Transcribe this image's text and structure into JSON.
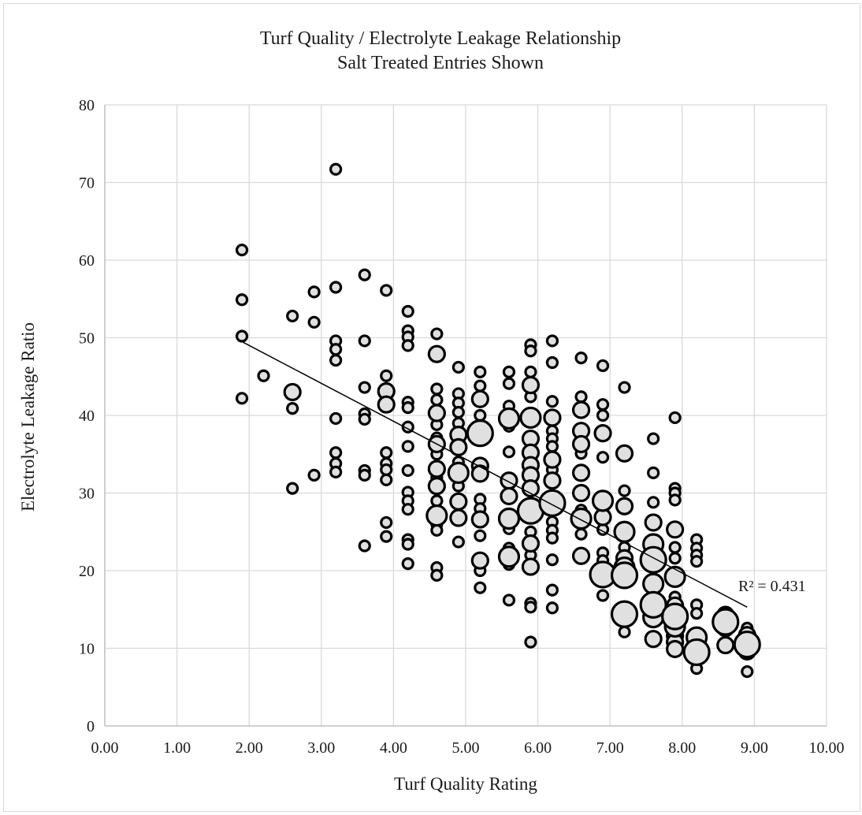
{
  "chart_data": {
    "type": "scatter",
    "title": "Turf Quality / Electrolyte Leakage Relationship",
    "subtitle": "Salt Treated Entries Shown",
    "xlabel": "Turf Quality Rating",
    "ylabel": "Electrolyte Leakage Ratio",
    "xlim": [
      0,
      10
    ],
    "ylim": [
      0,
      80
    ],
    "x_ticks": [
      "0.00",
      "1.00",
      "2.00",
      "3.00",
      "4.00",
      "5.00",
      "6.00",
      "7.00",
      "8.00",
      "9.00",
      "10.00"
    ],
    "y_ticks": [
      "0",
      "10",
      "20",
      "30",
      "40",
      "50",
      "60",
      "70",
      "80"
    ],
    "grid": true,
    "marker_fill": "#e0e0e0",
    "marker_edge": "#000000",
    "trendline": {
      "type": "linear",
      "x": [
        1.9,
        8.9
      ],
      "y": [
        49.5,
        15.3
      ],
      "label": "R² = 0.431"
    },
    "points": [
      {
        "x": 1.9,
        "y": 61.3,
        "s": 1
      },
      {
        "x": 1.9,
        "y": 54.9,
        "s": 1
      },
      {
        "x": 1.9,
        "y": 50.2,
        "s": 1
      },
      {
        "x": 1.9,
        "y": 42.2,
        "s": 1
      },
      {
        "x": 2.2,
        "y": 45.1,
        "s": 1
      },
      {
        "x": 2.6,
        "y": 52.8,
        "s": 1
      },
      {
        "x": 2.6,
        "y": 43.0,
        "s": 2
      },
      {
        "x": 2.6,
        "y": 40.9,
        "s": 1
      },
      {
        "x": 2.6,
        "y": 30.6,
        "s": 1
      },
      {
        "x": 2.9,
        "y": 55.9,
        "s": 1
      },
      {
        "x": 2.9,
        "y": 52.0,
        "s": 1
      },
      {
        "x": 2.9,
        "y": 32.3,
        "s": 1
      },
      {
        "x": 3.2,
        "y": 71.7,
        "s": 1
      },
      {
        "x": 3.2,
        "y": 56.5,
        "s": 1
      },
      {
        "x": 3.2,
        "y": 49.6,
        "s": 1
      },
      {
        "x": 3.2,
        "y": 48.5,
        "s": 1
      },
      {
        "x": 3.2,
        "y": 47.1,
        "s": 1
      },
      {
        "x": 3.2,
        "y": 39.6,
        "s": 1
      },
      {
        "x": 3.2,
        "y": 35.2,
        "s": 1
      },
      {
        "x": 3.2,
        "y": 33.8,
        "s": 1
      },
      {
        "x": 3.2,
        "y": 32.7,
        "s": 1
      },
      {
        "x": 3.6,
        "y": 58.1,
        "s": 1
      },
      {
        "x": 3.6,
        "y": 49.6,
        "s": 1
      },
      {
        "x": 3.6,
        "y": 43.6,
        "s": 1
      },
      {
        "x": 3.6,
        "y": 40.2,
        "s": 1
      },
      {
        "x": 3.6,
        "y": 39.5,
        "s": 1
      },
      {
        "x": 3.6,
        "y": 32.9,
        "s": 1
      },
      {
        "x": 3.6,
        "y": 32.3,
        "s": 1
      },
      {
        "x": 3.6,
        "y": 23.2,
        "s": 1
      },
      {
        "x": 3.9,
        "y": 56.1,
        "s": 1
      },
      {
        "x": 3.9,
        "y": 45.1,
        "s": 1
      },
      {
        "x": 3.9,
        "y": 43.1,
        "s": 2
      },
      {
        "x": 3.9,
        "y": 41.4,
        "s": 2
      },
      {
        "x": 3.9,
        "y": 35.2,
        "s": 1
      },
      {
        "x": 3.9,
        "y": 33.8,
        "s": 1
      },
      {
        "x": 3.9,
        "y": 33.0,
        "s": 1
      },
      {
        "x": 3.9,
        "y": 31.7,
        "s": 1
      },
      {
        "x": 3.9,
        "y": 26.2,
        "s": 1
      },
      {
        "x": 3.9,
        "y": 24.4,
        "s": 1
      },
      {
        "x": 4.2,
        "y": 53.4,
        "s": 1
      },
      {
        "x": 4.2,
        "y": 50.9,
        "s": 1
      },
      {
        "x": 4.2,
        "y": 50.1,
        "s": 1
      },
      {
        "x": 4.2,
        "y": 49.0,
        "s": 1
      },
      {
        "x": 4.2,
        "y": 41.7,
        "s": 1
      },
      {
        "x": 4.2,
        "y": 41.0,
        "s": 1
      },
      {
        "x": 4.2,
        "y": 38.5,
        "s": 1
      },
      {
        "x": 4.2,
        "y": 36.0,
        "s": 1
      },
      {
        "x": 4.2,
        "y": 32.9,
        "s": 1
      },
      {
        "x": 4.2,
        "y": 30.1,
        "s": 1
      },
      {
        "x": 4.2,
        "y": 29.0,
        "s": 1
      },
      {
        "x": 4.2,
        "y": 27.9,
        "s": 1
      },
      {
        "x": 4.2,
        "y": 24.0,
        "s": 1
      },
      {
        "x": 4.2,
        "y": 23.4,
        "s": 1
      },
      {
        "x": 4.2,
        "y": 20.9,
        "s": 1
      },
      {
        "x": 4.6,
        "y": 50.5,
        "s": 1
      },
      {
        "x": 4.6,
        "y": 47.9,
        "s": 2
      },
      {
        "x": 4.6,
        "y": 43.4,
        "s": 1
      },
      {
        "x": 4.6,
        "y": 42.0,
        "s": 1
      },
      {
        "x": 4.6,
        "y": 40.3,
        "s": 2
      },
      {
        "x": 4.6,
        "y": 38.8,
        "s": 1
      },
      {
        "x": 4.6,
        "y": 37.1,
        "s": 1
      },
      {
        "x": 4.6,
        "y": 36.3,
        "s": 2
      },
      {
        "x": 4.6,
        "y": 35.0,
        "s": 1
      },
      {
        "x": 4.6,
        "y": 33.1,
        "s": 2
      },
      {
        "x": 4.6,
        "y": 32.0,
        "s": 1
      },
      {
        "x": 4.6,
        "y": 30.9,
        "s": 2
      },
      {
        "x": 4.6,
        "y": 29.0,
        "s": 1
      },
      {
        "x": 4.6,
        "y": 27.1,
        "s": 3
      },
      {
        "x": 4.6,
        "y": 26.0,
        "s": 1
      },
      {
        "x": 4.6,
        "y": 25.2,
        "s": 1
      },
      {
        "x": 4.6,
        "y": 20.4,
        "s": 1
      },
      {
        "x": 4.6,
        "y": 19.4,
        "s": 1
      },
      {
        "x": 4.9,
        "y": 46.2,
        "s": 1
      },
      {
        "x": 4.9,
        "y": 42.8,
        "s": 1
      },
      {
        "x": 4.9,
        "y": 41.6,
        "s": 1
      },
      {
        "x": 4.9,
        "y": 40.4,
        "s": 1
      },
      {
        "x": 4.9,
        "y": 39.0,
        "s": 1
      },
      {
        "x": 4.9,
        "y": 37.5,
        "s": 2
      },
      {
        "x": 4.9,
        "y": 35.9,
        "s": 2
      },
      {
        "x": 4.9,
        "y": 34.0,
        "s": 1
      },
      {
        "x": 4.9,
        "y": 32.6,
        "s": 3
      },
      {
        "x": 4.9,
        "y": 30.9,
        "s": 1
      },
      {
        "x": 4.9,
        "y": 28.9,
        "s": 2
      },
      {
        "x": 4.9,
        "y": 26.8,
        "s": 2
      },
      {
        "x": 4.9,
        "y": 23.7,
        "s": 1
      },
      {
        "x": 5.2,
        "y": 45.6,
        "s": 1
      },
      {
        "x": 5.2,
        "y": 43.8,
        "s": 1
      },
      {
        "x": 5.2,
        "y": 42.1,
        "s": 2
      },
      {
        "x": 5.2,
        "y": 40.0,
        "s": 1
      },
      {
        "x": 5.2,
        "y": 37.7,
        "s": 4
      },
      {
        "x": 5.2,
        "y": 33.5,
        "s": 2
      },
      {
        "x": 5.2,
        "y": 32.5,
        "s": 2
      },
      {
        "x": 5.2,
        "y": 29.2,
        "s": 1
      },
      {
        "x": 5.2,
        "y": 28.0,
        "s": 1
      },
      {
        "x": 5.2,
        "y": 26.6,
        "s": 2
      },
      {
        "x": 5.2,
        "y": 24.5,
        "s": 1
      },
      {
        "x": 5.2,
        "y": 21.3,
        "s": 2
      },
      {
        "x": 5.2,
        "y": 20.0,
        "s": 1
      },
      {
        "x": 5.2,
        "y": 17.8,
        "s": 1
      },
      {
        "x": 5.6,
        "y": 45.6,
        "s": 1
      },
      {
        "x": 5.6,
        "y": 44.1,
        "s": 1
      },
      {
        "x": 5.6,
        "y": 41.2,
        "s": 1
      },
      {
        "x": 5.6,
        "y": 39.6,
        "s": 3
      },
      {
        "x": 5.6,
        "y": 38.6,
        "s": 1
      },
      {
        "x": 5.6,
        "y": 35.3,
        "s": 1
      },
      {
        "x": 5.6,
        "y": 31.6,
        "s": 2
      },
      {
        "x": 5.6,
        "y": 29.6,
        "s": 2
      },
      {
        "x": 5.6,
        "y": 26.7,
        "s": 3
      },
      {
        "x": 5.6,
        "y": 25.4,
        "s": 1
      },
      {
        "x": 5.6,
        "y": 22.9,
        "s": 1
      },
      {
        "x": 5.6,
        "y": 21.8,
        "s": 3
      },
      {
        "x": 5.6,
        "y": 20.8,
        "s": 1
      },
      {
        "x": 5.6,
        "y": 16.2,
        "s": 1
      },
      {
        "x": 5.9,
        "y": 49.1,
        "s": 1
      },
      {
        "x": 5.9,
        "y": 48.3,
        "s": 1
      },
      {
        "x": 5.9,
        "y": 45.6,
        "s": 1
      },
      {
        "x": 5.9,
        "y": 43.9,
        "s": 2
      },
      {
        "x": 5.9,
        "y": 42.4,
        "s": 1
      },
      {
        "x": 5.9,
        "y": 39.7,
        "s": 3
      },
      {
        "x": 5.9,
        "y": 37.0,
        "s": 2
      },
      {
        "x": 5.9,
        "y": 35.2,
        "s": 2
      },
      {
        "x": 5.9,
        "y": 33.6,
        "s": 2
      },
      {
        "x": 5.9,
        "y": 32.3,
        "s": 2
      },
      {
        "x": 5.9,
        "y": 30.6,
        "s": 2
      },
      {
        "x": 5.9,
        "y": 27.7,
        "s": 4
      },
      {
        "x": 5.9,
        "y": 25.0,
        "s": 1
      },
      {
        "x": 5.9,
        "y": 23.5,
        "s": 2
      },
      {
        "x": 5.9,
        "y": 22.0,
        "s": 1
      },
      {
        "x": 5.9,
        "y": 20.5,
        "s": 2
      },
      {
        "x": 5.9,
        "y": 15.8,
        "s": 1
      },
      {
        "x": 5.9,
        "y": 15.3,
        "s": 1
      },
      {
        "x": 5.9,
        "y": 10.8,
        "s": 1
      },
      {
        "x": 6.2,
        "y": 49.6,
        "s": 1
      },
      {
        "x": 6.2,
        "y": 46.8,
        "s": 1
      },
      {
        "x": 6.2,
        "y": 41.8,
        "s": 1
      },
      {
        "x": 6.2,
        "y": 39.7,
        "s": 2
      },
      {
        "x": 6.2,
        "y": 38.0,
        "s": 1
      },
      {
        "x": 6.2,
        "y": 37.0,
        "s": 1
      },
      {
        "x": 6.2,
        "y": 36.0,
        "s": 1
      },
      {
        "x": 6.2,
        "y": 34.3,
        "s": 2
      },
      {
        "x": 6.2,
        "y": 33.0,
        "s": 1
      },
      {
        "x": 6.2,
        "y": 31.6,
        "s": 2
      },
      {
        "x": 6.2,
        "y": 28.7,
        "s": 4
      },
      {
        "x": 6.2,
        "y": 26.3,
        "s": 1
      },
      {
        "x": 6.2,
        "y": 25.2,
        "s": 1
      },
      {
        "x": 6.2,
        "y": 24.2,
        "s": 1
      },
      {
        "x": 6.2,
        "y": 21.4,
        "s": 1
      },
      {
        "x": 6.2,
        "y": 17.5,
        "s": 1
      },
      {
        "x": 6.2,
        "y": 15.2,
        "s": 1
      },
      {
        "x": 6.6,
        "y": 47.4,
        "s": 1
      },
      {
        "x": 6.6,
        "y": 42.4,
        "s": 1
      },
      {
        "x": 6.6,
        "y": 41.1,
        "s": 1
      },
      {
        "x": 6.6,
        "y": 40.7,
        "s": 2
      },
      {
        "x": 6.6,
        "y": 38.0,
        "s": 2
      },
      {
        "x": 6.6,
        "y": 36.3,
        "s": 2
      },
      {
        "x": 6.6,
        "y": 35.1,
        "s": 1
      },
      {
        "x": 6.6,
        "y": 32.6,
        "s": 2
      },
      {
        "x": 6.6,
        "y": 30.0,
        "s": 2
      },
      {
        "x": 6.6,
        "y": 27.8,
        "s": 1
      },
      {
        "x": 6.6,
        "y": 26.7,
        "s": 3
      },
      {
        "x": 6.6,
        "y": 24.7,
        "s": 1
      },
      {
        "x": 6.6,
        "y": 21.9,
        "s": 2
      },
      {
        "x": 6.9,
        "y": 46.4,
        "s": 1
      },
      {
        "x": 6.9,
        "y": 41.4,
        "s": 1
      },
      {
        "x": 6.9,
        "y": 40.0,
        "s": 1
      },
      {
        "x": 6.9,
        "y": 37.7,
        "s": 2
      },
      {
        "x": 6.9,
        "y": 34.6,
        "s": 1
      },
      {
        "x": 6.9,
        "y": 29.0,
        "s": 3
      },
      {
        "x": 6.9,
        "y": 26.9,
        "s": 2
      },
      {
        "x": 6.9,
        "y": 25.3,
        "s": 1
      },
      {
        "x": 6.9,
        "y": 22.3,
        "s": 1
      },
      {
        "x": 6.9,
        "y": 21.3,
        "s": 1
      },
      {
        "x": 6.9,
        "y": 19.5,
        "s": 4
      },
      {
        "x": 6.9,
        "y": 16.8,
        "s": 1
      },
      {
        "x": 7.2,
        "y": 43.6,
        "s": 1
      },
      {
        "x": 7.2,
        "y": 35.1,
        "s": 2
      },
      {
        "x": 7.2,
        "y": 30.3,
        "s": 1
      },
      {
        "x": 7.2,
        "y": 28.3,
        "s": 2
      },
      {
        "x": 7.2,
        "y": 25.0,
        "s": 3
      },
      {
        "x": 7.2,
        "y": 23.0,
        "s": 1
      },
      {
        "x": 7.2,
        "y": 21.6,
        "s": 2
      },
      {
        "x": 7.2,
        "y": 20.4,
        "s": 3
      },
      {
        "x": 7.2,
        "y": 19.4,
        "s": 4
      },
      {
        "x": 7.2,
        "y": 14.4,
        "s": 4
      },
      {
        "x": 7.2,
        "y": 12.1,
        "s": 1
      },
      {
        "x": 7.6,
        "y": 37.0,
        "s": 1
      },
      {
        "x": 7.6,
        "y": 32.6,
        "s": 1
      },
      {
        "x": 7.6,
        "y": 28.8,
        "s": 1
      },
      {
        "x": 7.6,
        "y": 26.2,
        "s": 2
      },
      {
        "x": 7.6,
        "y": 23.4,
        "s": 3
      },
      {
        "x": 7.6,
        "y": 21.4,
        "s": 4
      },
      {
        "x": 7.6,
        "y": 18.3,
        "s": 3
      },
      {
        "x": 7.6,
        "y": 15.6,
        "s": 4
      },
      {
        "x": 7.6,
        "y": 14.0,
        "s": 3
      },
      {
        "x": 7.6,
        "y": 11.2,
        "s": 2
      },
      {
        "x": 7.9,
        "y": 39.7,
        "s": 1
      },
      {
        "x": 7.9,
        "y": 30.6,
        "s": 1
      },
      {
        "x": 7.9,
        "y": 30.0,
        "s": 1
      },
      {
        "x": 7.9,
        "y": 29.1,
        "s": 1
      },
      {
        "x": 7.9,
        "y": 25.3,
        "s": 2
      },
      {
        "x": 7.9,
        "y": 23.0,
        "s": 1
      },
      {
        "x": 7.9,
        "y": 21.6,
        "s": 1
      },
      {
        "x": 7.9,
        "y": 19.2,
        "s": 3
      },
      {
        "x": 7.9,
        "y": 16.6,
        "s": 1
      },
      {
        "x": 7.9,
        "y": 15.5,
        "s": 2
      },
      {
        "x": 7.9,
        "y": 14.1,
        "s": 4
      },
      {
        "x": 7.9,
        "y": 12.8,
        "s": 3
      },
      {
        "x": 7.9,
        "y": 11.6,
        "s": 2
      },
      {
        "x": 7.9,
        "y": 10.8,
        "s": 2
      },
      {
        "x": 7.9,
        "y": 9.9,
        "s": 2
      },
      {
        "x": 8.2,
        "y": 24.0,
        "s": 1
      },
      {
        "x": 8.2,
        "y": 22.9,
        "s": 1
      },
      {
        "x": 8.2,
        "y": 22.0,
        "s": 1
      },
      {
        "x": 8.2,
        "y": 21.2,
        "s": 1
      },
      {
        "x": 8.2,
        "y": 15.6,
        "s": 1
      },
      {
        "x": 8.2,
        "y": 14.5,
        "s": 1
      },
      {
        "x": 8.2,
        "y": 11.4,
        "s": 3
      },
      {
        "x": 8.2,
        "y": 9.5,
        "s": 4
      },
      {
        "x": 8.2,
        "y": 7.4,
        "s": 1
      },
      {
        "x": 8.6,
        "y": 14.3,
        "s": 2
      },
      {
        "x": 8.6,
        "y": 13.4,
        "s": 4
      },
      {
        "x": 8.6,
        "y": 12.6,
        "s": 2
      },
      {
        "x": 8.6,
        "y": 10.4,
        "s": 2
      },
      {
        "x": 8.9,
        "y": 12.6,
        "s": 1
      },
      {
        "x": 8.9,
        "y": 11.7,
        "s": 2
      },
      {
        "x": 8.9,
        "y": 10.6,
        "s": 2
      },
      {
        "x": 8.9,
        "y": 10.5,
        "s": 4
      },
      {
        "x": 8.9,
        "y": 9.6,
        "s": 2
      },
      {
        "x": 8.9,
        "y": 7.0,
        "s": 1
      }
    ]
  }
}
